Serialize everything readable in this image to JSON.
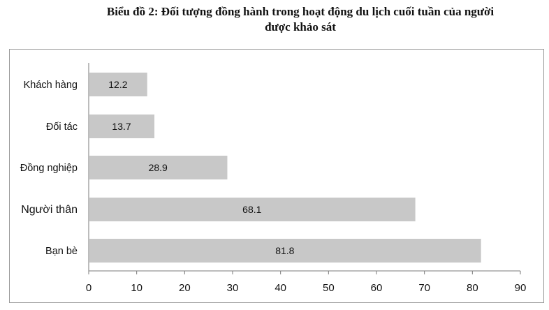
{
  "chart_data": {
    "type": "bar",
    "orientation": "horizontal",
    "title_line1": "Biểu đồ 2: Đối tượng đồng hành trong hoạt động du lịch cuối tuần của người",
    "title_line2": "được khảo sát",
    "categories": [
      "Khách hàng",
      "Đối tác",
      "Đồng nghiệp",
      "Người thân",
      "Bạn bè"
    ],
    "values": [
      12.2,
      13.7,
      28.9,
      68.1,
      81.8
    ],
    "xlim": [
      0,
      90
    ],
    "xticks": [
      0,
      10,
      20,
      30,
      40,
      50,
      60,
      70,
      80,
      90
    ],
    "grid": false,
    "legend": "none",
    "bar_color": "#c8c8c8",
    "axis_color": "#7a7a7a"
  }
}
